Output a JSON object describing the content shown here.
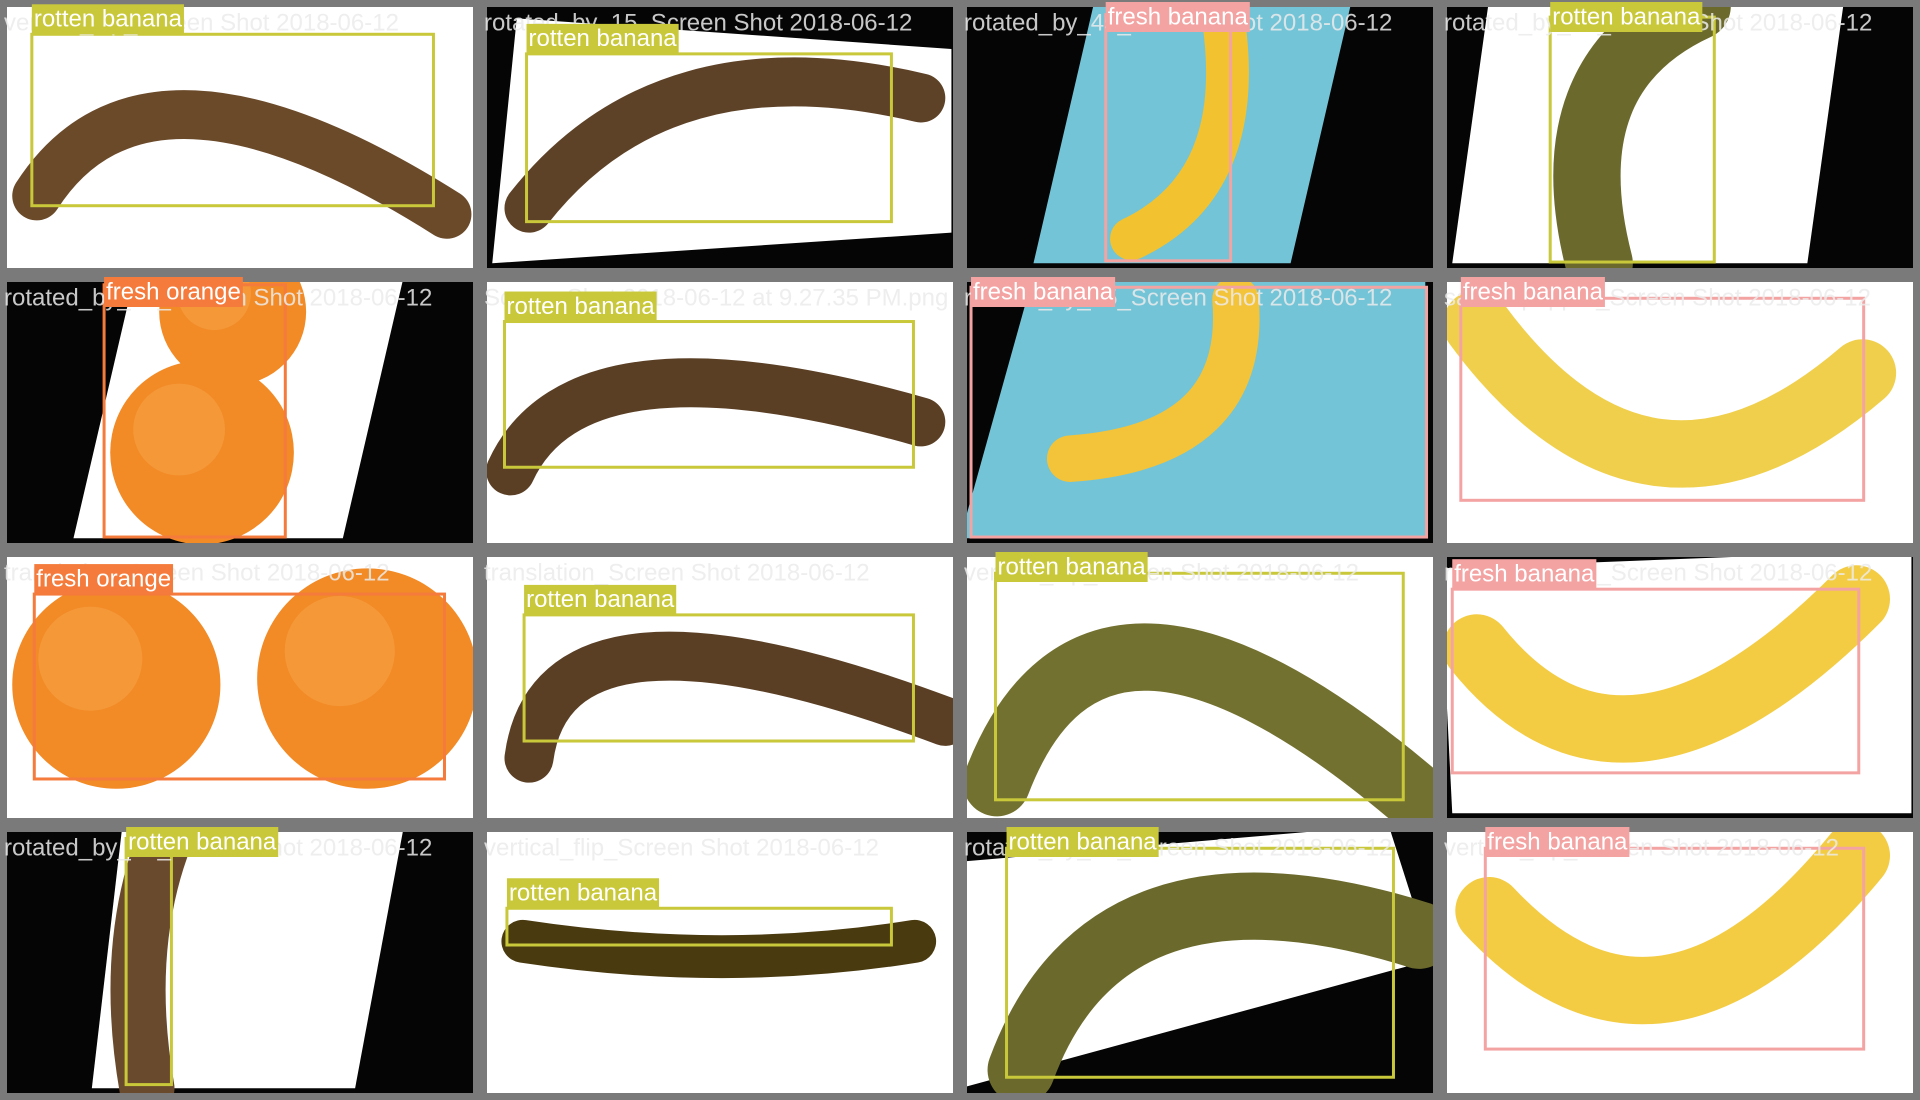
{
  "tiles": [
    {
      "filename": "vertical_flip_Screen Shot 2018-06-12",
      "detections": [
        {
          "label": "rotten banana",
          "color": "#c8c83a"
        }
      ]
    },
    {
      "filename": "rotated_by_15_Screen Shot 2018-06-12",
      "detections": [
        {
          "label": "rotten banana",
          "color": "#c8c83a"
        }
      ]
    },
    {
      "filename": "rotated_by_45_Screen Shot 2018-06-12",
      "detections": [
        {
          "label": "fresh banana",
          "color": "#f4a3a3"
        }
      ]
    },
    {
      "filename": "rotated_by_60_Screen Shot 2018-06-12",
      "detections": [
        {
          "label": "rotten banana",
          "color": "#c8c83a"
        }
      ]
    },
    {
      "filename": "rotated_by_75_Screen Shot 2018-06-12",
      "detections": [
        {
          "label": "fresh orange",
          "color": "#f47b3c"
        }
      ]
    },
    {
      "filename": "Screen Shot 2018-06-12 at 9.27.35 PM.png",
      "detections": [
        {
          "label": "rotten banana",
          "color": "#c8c83a"
        }
      ]
    },
    {
      "filename": "rotated_by_45_Screen Shot 2018-06-12",
      "detections": [
        {
          "label": "fresh banana",
          "color": "#f4a3a3"
        }
      ]
    },
    {
      "filename": "saltandpepper_Screen Shot 2018-06-12",
      "detections": [
        {
          "label": "fresh banana",
          "color": "#f4a3a3"
        }
      ]
    },
    {
      "filename": "translation_Screen Shot 2018-06-12",
      "detections": [
        {
          "label": "fresh orange",
          "color": "#f47b3c"
        }
      ]
    },
    {
      "filename": "translation_Screen Shot 2018-06-12",
      "detections": [
        {
          "label": "rotten banana",
          "color": "#c8c83a"
        }
      ]
    },
    {
      "filename": "vertical_flip_Screen Shot 2018-06-12",
      "detections": [
        {
          "label": "rotten banana",
          "color": "#c8c83a"
        }
      ]
    },
    {
      "filename": "rotated_by_15_Screen Shot 2018-06-12",
      "detections": [
        {
          "label": "fresh banana",
          "color": "#f4a3a3"
        }
      ]
    },
    {
      "filename": "rotated_by_75_Screen Shot 2018-06-12",
      "detections": [
        {
          "label": "rotten banana",
          "color": "#c8c83a"
        }
      ]
    },
    {
      "filename": "vertical_flip_Screen Shot 2018-06-12",
      "detections": [
        {
          "label": "rotten banana",
          "color": "#c8c83a"
        }
      ]
    },
    {
      "filename": "rotated_by_30_Screen Shot 2018-06-12",
      "detections": [
        {
          "label": "rotten banana",
          "color": "#c8c83a"
        }
      ]
    },
    {
      "filename": "vertical_flip_Screen Shot 2018-06-12",
      "detections": [
        {
          "label": "fresh banana",
          "color": "#f4a3a3"
        }
      ]
    }
  ]
}
